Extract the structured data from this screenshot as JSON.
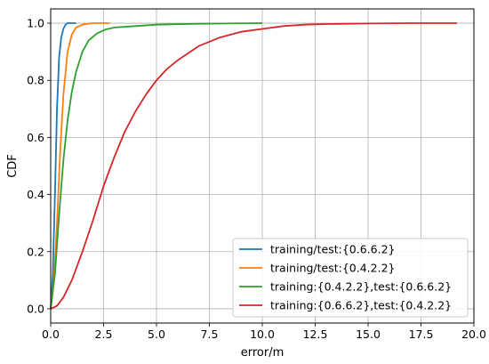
{
  "chart_data": {
    "type": "line",
    "title": "",
    "xlabel": "error/m",
    "ylabel": "CDF",
    "xlim": [
      0,
      20
    ],
    "ylim": [
      -0.05,
      1.05
    ],
    "xticks": [
      0,
      2.5,
      5,
      7.5,
      10,
      12.5,
      15,
      17.5,
      20
    ],
    "xtick_labels": [
      "0.0",
      "2.5",
      "5.0",
      "7.5",
      "10.0",
      "12.5",
      "15.0",
      "17.5",
      "20.0"
    ],
    "yticks": [
      0,
      0.2,
      0.4,
      0.6,
      0.8,
      1.0
    ],
    "ytick_labels": [
      "0.0",
      "0.2",
      "0.4",
      "0.6",
      "0.8",
      "1.0"
    ],
    "grid": true,
    "legend_position": "lower-right",
    "series": [
      {
        "name": "training/test:{0.6.6.2}",
        "color": "#1f77b4",
        "x": [
          0,
          0.1,
          0.2,
          0.3,
          0.4,
          0.5,
          0.6,
          0.7,
          0.8,
          1.0,
          1.2
        ],
        "y": [
          0,
          0.12,
          0.4,
          0.7,
          0.88,
          0.95,
          0.98,
          0.995,
          1.0,
          1.0,
          1.0
        ]
      },
      {
        "name": "training/test:{0.4.2.2}",
        "color": "#ff7f0e",
        "x": [
          0,
          0.15,
          0.3,
          0.45,
          0.6,
          0.8,
          1.0,
          1.2,
          1.5,
          2.0,
          2.8
        ],
        "y": [
          0,
          0.1,
          0.3,
          0.55,
          0.75,
          0.9,
          0.96,
          0.985,
          0.995,
          1.0,
          1.0
        ]
      },
      {
        "name": "training:{0.4.2.2},test:{0.6.6.2}",
        "color": "#2ca02c",
        "x": [
          0,
          0.2,
          0.4,
          0.6,
          0.8,
          1.0,
          1.2,
          1.5,
          1.8,
          2.2,
          2.6,
          3.0,
          4.0,
          5.0,
          7.0,
          10.0
        ],
        "y": [
          0,
          0.12,
          0.33,
          0.52,
          0.66,
          0.76,
          0.83,
          0.9,
          0.94,
          0.965,
          0.978,
          0.985,
          0.99,
          0.995,
          0.998,
          1.0
        ]
      },
      {
        "name": "training:{0.6.6.2},test:{0.4.2.2}",
        "color": "#d62728",
        "x": [
          0,
          0.3,
          0.6,
          1.0,
          1.5,
          2.0,
          2.5,
          3.0,
          3.5,
          4.0,
          4.5,
          5.0,
          5.5,
          6.0,
          7.0,
          8.0,
          9.0,
          10.0,
          11.0,
          12.0,
          13.0,
          14.0,
          15.0,
          17.0,
          19.2
        ],
        "y": [
          0,
          0.01,
          0.04,
          0.1,
          0.2,
          0.31,
          0.43,
          0.53,
          0.62,
          0.69,
          0.75,
          0.8,
          0.84,
          0.87,
          0.92,
          0.95,
          0.97,
          0.98,
          0.99,
          0.995,
          0.997,
          0.998,
          0.999,
          1.0,
          1.0
        ]
      }
    ]
  }
}
